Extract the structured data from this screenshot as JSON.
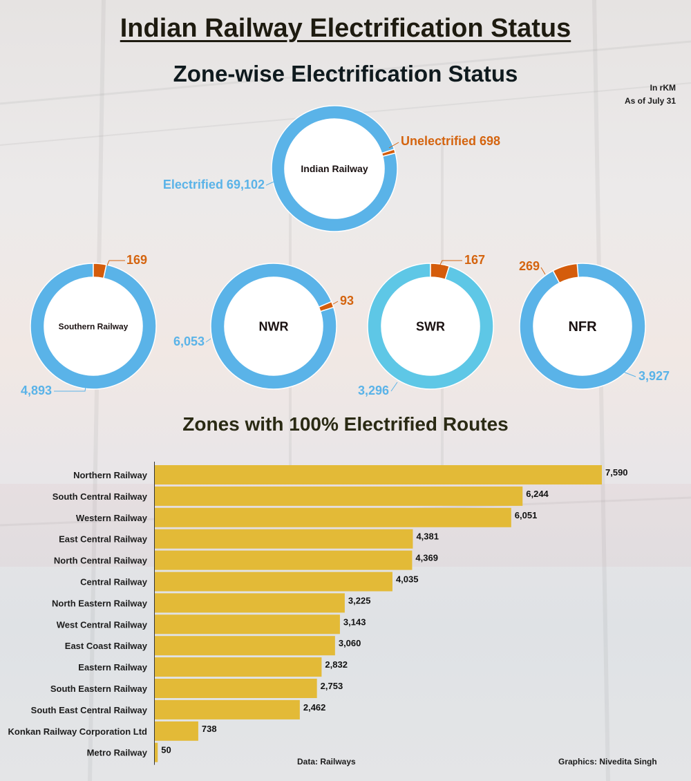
{
  "title": "Indian Railway Electrification Status",
  "subtitle_zone": "Zone-wise Electrification Status",
  "subtitle_bar": "Zones with 100% Electrified Routes",
  "unit_note": "In rKM",
  "date_note": "As of July 31",
  "source": "Data: Railways",
  "credit": "Graphics: Nivedita Singh",
  "colors": {
    "electrified": "#5ab3e8",
    "electrified_swr": "#5ec7e6",
    "unelectrified": "#d45c0b",
    "bar": "#e3ba37",
    "electrified_text": "#5ab3e8",
    "unelectrified_text": "#d4640f"
  },
  "chart_data": [
    {
      "type": "pie",
      "variant": "donut",
      "center_label": "Indian Railway",
      "slices": [
        {
          "name": "Electrified",
          "value": 69102,
          "label": "Electrified 69,102"
        },
        {
          "name": "Unelectrified",
          "value": 698,
          "label": "Unelectrified 698"
        }
      ]
    },
    {
      "type": "pie",
      "variant": "donut",
      "center_label": "Southern Railway",
      "slices": [
        {
          "name": "Electrified",
          "value": 4893,
          "label": "4,893"
        },
        {
          "name": "Unelectrified",
          "value": 169,
          "label": "169"
        }
      ]
    },
    {
      "type": "pie",
      "variant": "donut",
      "center_label": "NWR",
      "slices": [
        {
          "name": "Electrified",
          "value": 6053,
          "label": "6,053"
        },
        {
          "name": "Unelectrified",
          "value": 93,
          "label": "93"
        }
      ]
    },
    {
      "type": "pie",
      "variant": "donut",
      "center_label": "SWR",
      "slices": [
        {
          "name": "Electrified",
          "value": 3296,
          "label": "3,296"
        },
        {
          "name": "Unelectrified",
          "value": 167,
          "label": "167"
        }
      ]
    },
    {
      "type": "pie",
      "variant": "donut",
      "center_label": "NFR",
      "slices": [
        {
          "name": "Electrified",
          "value": 3927,
          "label": "3,927"
        },
        {
          "name": "Unelectrified",
          "value": 269,
          "label": "269"
        }
      ]
    },
    {
      "type": "bar",
      "orientation": "horizontal",
      "title": "Zones with 100% Electrified Routes",
      "categories": [
        "Northern Railway",
        "South Central Railway",
        "Western Railway",
        "East Central Railway",
        "North Central Railway",
        "Central Railway",
        "North Eastern Railway",
        "West Central Railway",
        "East Coast Railway",
        "Eastern Railway",
        "South Eastern Railway",
        "South East Central Railway",
        "Konkan Railway Corporation Ltd",
        "Metro Railway"
      ],
      "values": [
        7590,
        6244,
        6051,
        4381,
        4369,
        4035,
        3225,
        3143,
        3060,
        2832,
        2753,
        2462,
        738,
        50
      ],
      "value_labels": [
        "7,590",
        "6,244",
        "6,051",
        "4,381",
        "4,369",
        "4,035",
        "3,225",
        "3,143",
        "3,060",
        "2,832",
        "2,753",
        "2,462",
        "738",
        "50"
      ]
    }
  ]
}
